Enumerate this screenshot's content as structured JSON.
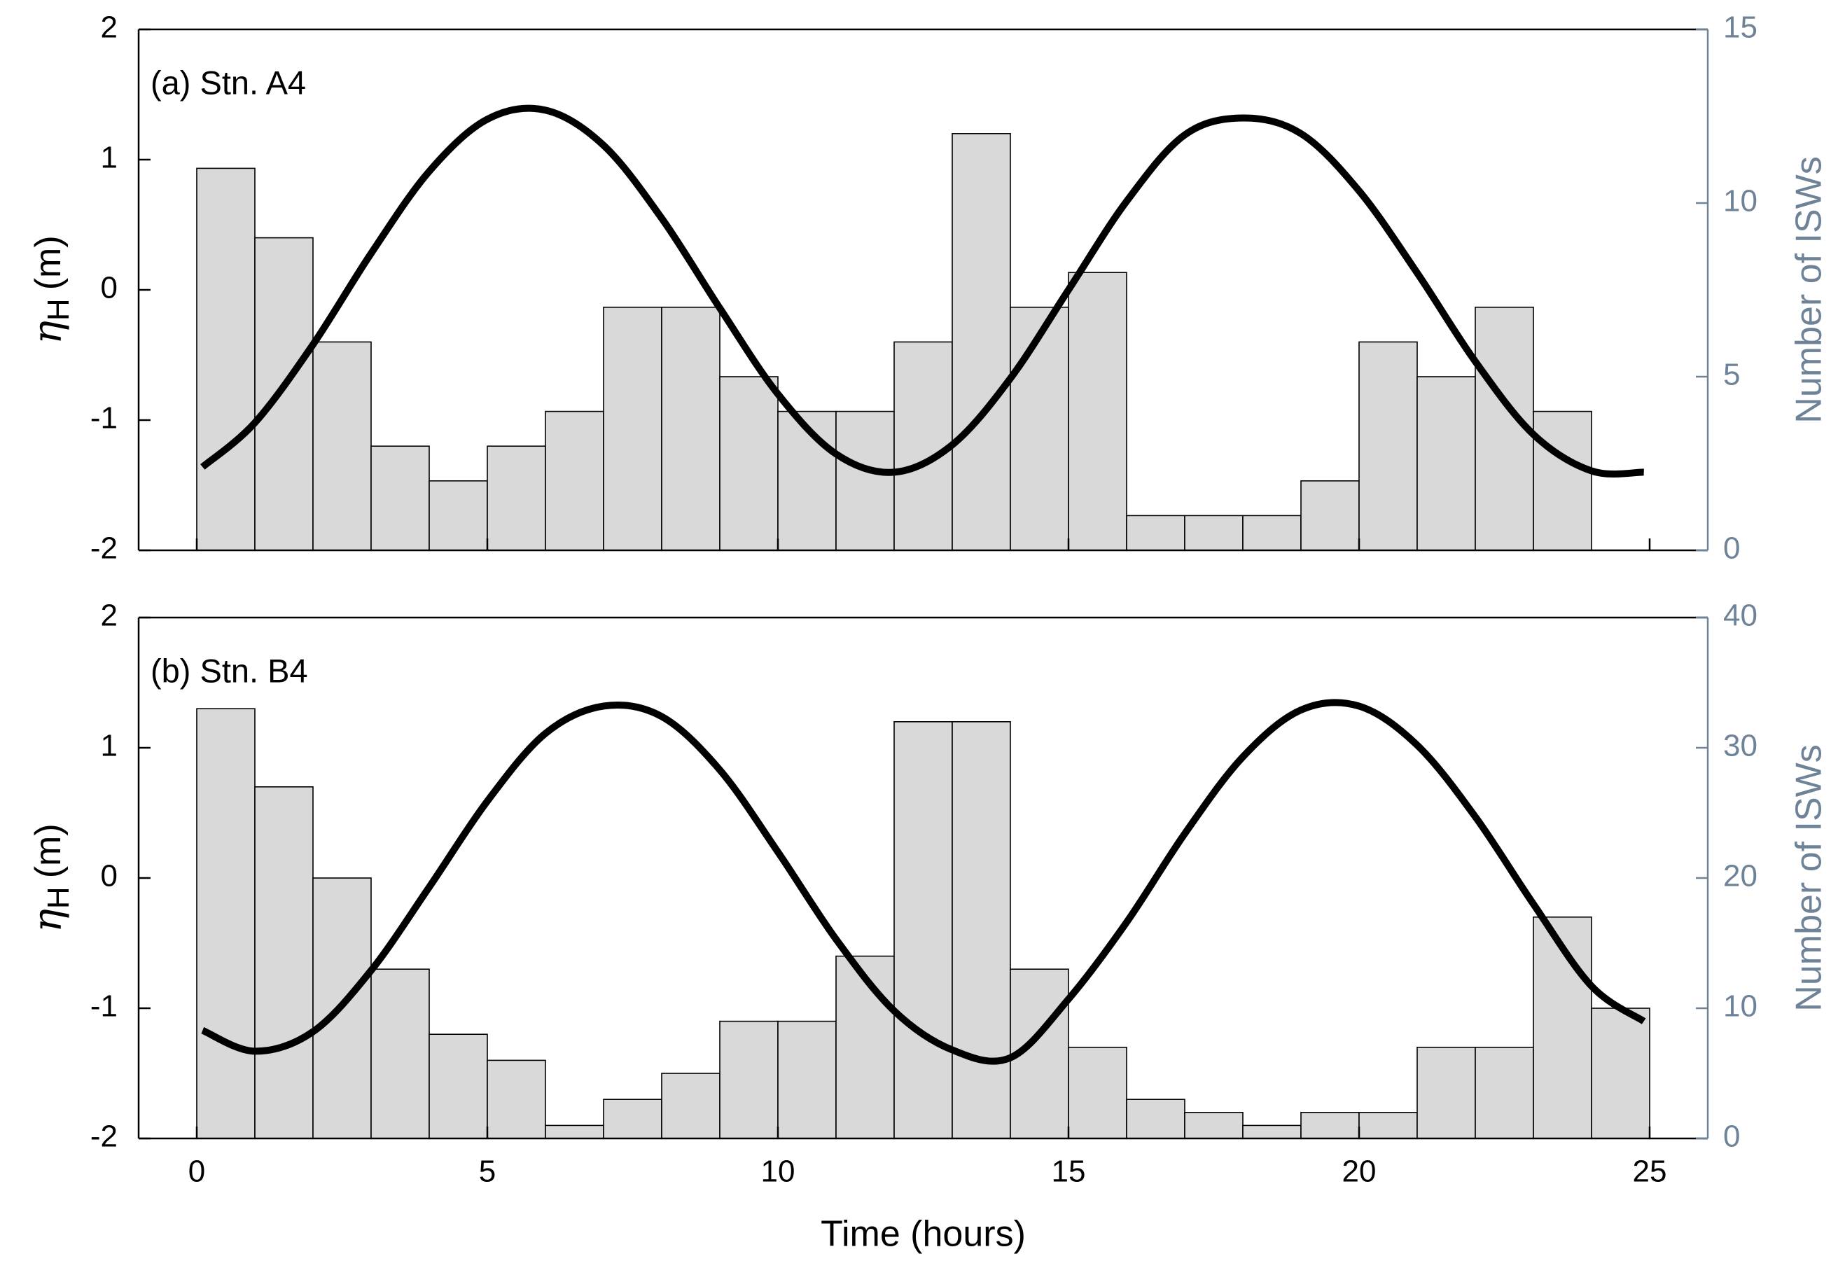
{
  "chart_data": [
    {
      "type": "histogram",
      "panel_label": "(a) Stn. A4",
      "bins": [
        0,
        1,
        2,
        3,
        4,
        5,
        6,
        7,
        8,
        9,
        10,
        11,
        12,
        13,
        14,
        15,
        16,
        17,
        18,
        19,
        20,
        21,
        22,
        23,
        24,
        25
      ],
      "counts": [
        11,
        9,
        6,
        3,
        2,
        3,
        4,
        7,
        7,
        5,
        4,
        4,
        6,
        12,
        7,
        8,
        1,
        1,
        1,
        2,
        6,
        5,
        7,
        4,
        0
      ],
      "bar_color": "#d9d9d9",
      "line": {
        "color": "#000000",
        "x": [
          0.1,
          1,
          2,
          3,
          4,
          5,
          6,
          7,
          8,
          9,
          10,
          11,
          12,
          13,
          14,
          15,
          16,
          17,
          18,
          19,
          20,
          21,
          22,
          23,
          24,
          24.9
        ],
        "values": [
          -1.36,
          -1.02,
          -0.42,
          0.28,
          0.91,
          1.31,
          1.38,
          1.11,
          0.55,
          -0.14,
          -0.8,
          -1.26,
          -1.4,
          -1.19,
          -0.68,
          0.0,
          0.68,
          1.19,
          1.32,
          1.2,
          0.76,
          0.13,
          -0.55,
          -1.11,
          -1.39,
          -1.4
        ]
      },
      "xlim": [
        -1,
        26
      ],
      "xticks": [
        0,
        5,
        10,
        15,
        20,
        25
      ],
      "xticklabels": false,
      "ylim": [
        -2,
        2
      ],
      "yticks": [
        -2,
        -1,
        0,
        1,
        2
      ],
      "y2lim": [
        0,
        15
      ],
      "y2ticks": [
        0,
        5,
        10,
        15
      ],
      "ylabel_symbol": "η",
      "ylabel_subscript": "H",
      "ylabel_unit": "(m)",
      "y2label": "Number of ISWs",
      "y2color": "#6e8397"
    },
    {
      "type": "histogram",
      "panel_label": "(b) Stn. B4",
      "bins": [
        0,
        1,
        2,
        3,
        4,
        5,
        6,
        7,
        8,
        9,
        10,
        11,
        12,
        13,
        14,
        15,
        16,
        17,
        18,
        19,
        20,
        21,
        22,
        23,
        24,
        25
      ],
      "counts": [
        33,
        27,
        20,
        13,
        8,
        6,
        1,
        3,
        5,
        9,
        9,
        14,
        32,
        32,
        13,
        7,
        3,
        2,
        1,
        2,
        2,
        7,
        7,
        17,
        10
      ],
      "bar_color": "#d9d9d9",
      "line": {
        "color": "#000000",
        "x": [
          0.1,
          1,
          2,
          3,
          4,
          5,
          6,
          7,
          8,
          9,
          10,
          11,
          12,
          13,
          14,
          15,
          16,
          17,
          18,
          19,
          20,
          21,
          22,
          23,
          24,
          24.9
        ],
        "values": [
          -1.17,
          -1.33,
          -1.18,
          -0.71,
          -0.07,
          0.59,
          1.11,
          1.32,
          1.24,
          0.83,
          0.2,
          -0.47,
          -1.02,
          -1.32,
          -1.38,
          -0.93,
          -0.34,
          0.34,
          0.93,
          1.29,
          1.32,
          1.02,
          0.47,
          -0.2,
          -0.83,
          -1.1
        ]
      },
      "xlim": [
        -1,
        26
      ],
      "xticks": [
        0,
        5,
        10,
        15,
        20,
        25
      ],
      "xticklabels": true,
      "xlabel": "Time (hours)",
      "ylim": [
        -2,
        2
      ],
      "yticks": [
        -2,
        -1,
        0,
        1,
        2
      ],
      "y2lim": [
        0,
        40
      ],
      "y2ticks": [
        0,
        10,
        20,
        30,
        40
      ],
      "ylabel_symbol": "η",
      "ylabel_subscript": "H",
      "ylabel_unit": "(m)",
      "y2label": "Number of ISWs",
      "y2color": "#6e8397"
    }
  ]
}
